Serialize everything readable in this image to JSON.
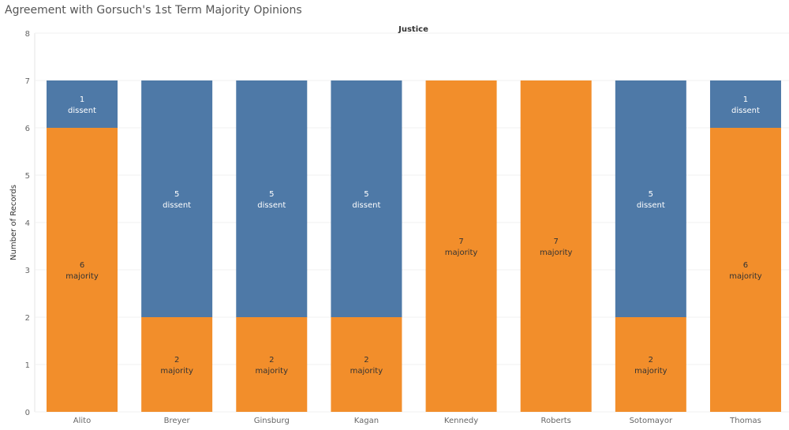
{
  "chart_data": {
    "type": "bar",
    "stacked": true,
    "title": "Agreement with Gorsuch's 1st Term Majority Opinions",
    "header": "Justice",
    "ylabel": "Number of Records",
    "xlabel": "",
    "ylim": [
      0,
      8
    ],
    "yticks": [
      0,
      1,
      2,
      3,
      4,
      5,
      6,
      7,
      8
    ],
    "categories": [
      "Alito",
      "Breyer",
      "Ginsburg",
      "Kagan",
      "Kennedy",
      "Roberts",
      "Sotomayor",
      "Thomas"
    ],
    "series": [
      {
        "name": "majority",
        "color": "#f28e2b",
        "label_color": "#333333",
        "values": [
          6,
          2,
          2,
          2,
          7,
          7,
          2,
          6
        ]
      },
      {
        "name": "dissent",
        "color": "#4e79a7",
        "label_color": "#ffffff",
        "values": [
          1,
          5,
          5,
          5,
          0,
          0,
          5,
          1
        ]
      }
    ]
  }
}
